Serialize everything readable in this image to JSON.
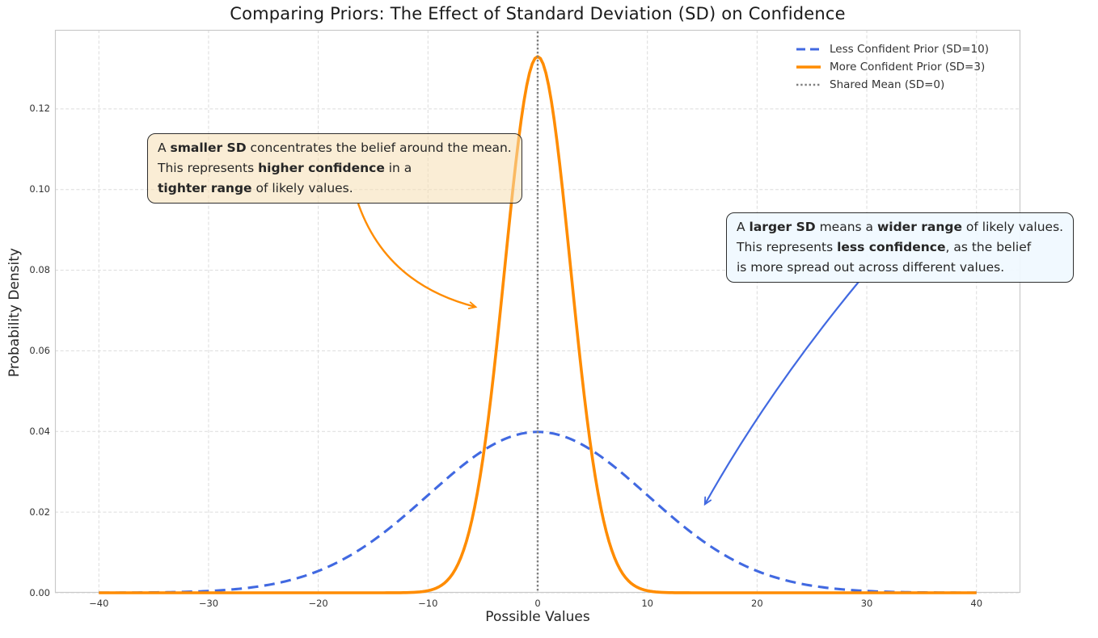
{
  "chart_data": {
    "type": "line",
    "title": "Comparing Priors: The Effect of Standard Deviation (SD) on Confidence",
    "xlabel": "Possible Values",
    "ylabel": "Probability Density",
    "xlim": [
      -44,
      44
    ],
    "ylim": [
      0,
      0.1396
    ],
    "grid": true,
    "grid_style": "dashed",
    "legend_position": "upper right",
    "x_ticks": {
      "values": [
        -40,
        -30,
        -20,
        -10,
        0,
        10,
        20,
        30,
        40
      ],
      "labels": [
        "−40",
        "−30",
        "−20",
        "−10",
        "0",
        "10",
        "20",
        "30",
        "40"
      ]
    },
    "y_ticks": {
      "values": [
        0.0,
        0.02,
        0.04,
        0.06,
        0.08,
        0.1,
        0.12
      ],
      "labels": [
        "0.00",
        "0.02",
        "0.04",
        "0.06",
        "0.08",
        "0.10",
        "0.12"
      ]
    },
    "series": [
      {
        "name": "Less Confident Prior (SD=10)",
        "type": "gaussian-pdf",
        "mean": 0,
        "sd": 10,
        "x_range": [
          -40,
          40
        ],
        "peak_density": 0.0399,
        "color": "#4169E1",
        "line_style": "dashed",
        "line_width": 3.1
      },
      {
        "name": "More Confident Prior (SD=3)",
        "type": "gaussian-pdf",
        "mean": 0,
        "sd": 3,
        "x_range": [
          -40,
          40
        ],
        "peak_density": 0.133,
        "color": "#FF8C00",
        "line_style": "solid",
        "line_width": 3.6
      },
      {
        "name": "Shared Mean (SD=0)",
        "type": "vline",
        "x": 0,
        "color": "#808080",
        "line_style": "dotted",
        "line_width": 2.4
      }
    ],
    "sampled_points": {
      "x": [
        -40,
        -35,
        -30,
        -25,
        -20,
        -15,
        -10,
        -5,
        0,
        5,
        10,
        15,
        20,
        25,
        30,
        35,
        40
      ],
      "sd10_density": [
        1.3e-05,
        8.7e-05,
        0.000443,
        0.001753,
        0.005399,
        0.012952,
        0.024197,
        0.035207,
        0.039894,
        0.035207,
        0.024197,
        0.012952,
        0.005399,
        0.001753,
        0.000443,
        8.7e-05,
        1.3e-05
      ],
      "sd3_density": [
        0,
        0,
        0,
        0,
        0,
        5e-07,
        0.000514,
        0.033158,
        0.132981,
        0.033158,
        0.000514,
        5e-07,
        0,
        0,
        0,
        0,
        0
      ]
    },
    "annotations": [
      {
        "id": "smaller-sd",
        "box_fill_css": "rgba(245,222,179,0.55)",
        "border_color": "#2e2e2e",
        "arrow_color": "#FF8C00",
        "text_lines": [
          [
            {
              "t": "A "
            },
            {
              "t": "smaller SD",
              "b": true
            },
            {
              "t": " concentrates the belief around the mean."
            }
          ],
          [
            {
              "t": "This represents "
            },
            {
              "t": "higher confidence",
              "b": true
            },
            {
              "t": " in a"
            }
          ],
          [
            {
              "t": "tighter range",
              "b": true
            },
            {
              "t": " of likely values."
            }
          ]
        ]
      },
      {
        "id": "larger-sd",
        "box_fill_css": "rgba(240,248,255,0.92)",
        "border_color": "#2e2e2e",
        "arrow_color": "#4169E1",
        "text_lines": [
          [
            {
              "t": "A "
            },
            {
              "t": "larger SD",
              "b": true
            },
            {
              "t": " means a "
            },
            {
              "t": "wider range",
              "b": true
            },
            {
              "t": " of likely values."
            }
          ],
          [
            {
              "t": "This represents "
            },
            {
              "t": "less confidence",
              "b": true
            },
            {
              "t": ", as the belief"
            }
          ],
          [
            {
              "t": "is more spread out across different values."
            }
          ]
        ]
      }
    ]
  }
}
